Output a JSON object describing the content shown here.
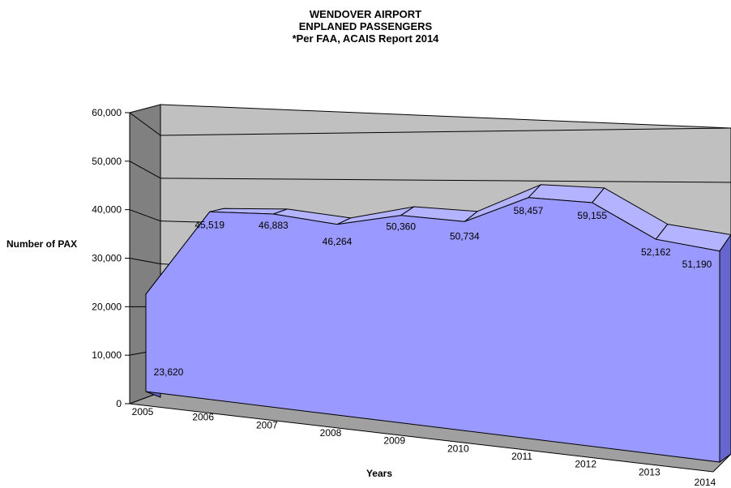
{
  "chart_data": {
    "type": "area",
    "title": [
      "WENDOVER AIRPORT",
      "ENPLANED PASSENGERS",
      "*Per FAA, ACAIS Report 2014"
    ],
    "xlabel": "Years",
    "ylabel": "Number of PAX",
    "ylim": [
      0,
      60000
    ],
    "yticks": [
      "0",
      "10,000",
      "20,000",
      "30,000",
      "40,000",
      "50,000",
      "60,000"
    ],
    "categories": [
      "2005",
      "2006",
      "2007",
      "2008",
      "2009",
      "2010",
      "2011",
      "2012",
      "2013",
      "2014"
    ],
    "values": [
      23620,
      45519,
      46883,
      46264,
      50360,
      50734,
      58457,
      59155,
      52162,
      51190
    ],
    "data_labels": [
      "23,620",
      "45,519",
      "46,883",
      "46,264",
      "50,360",
      "50,734",
      "58,457",
      "59,155",
      "52,162",
      "51,190"
    ],
    "grid": true,
    "style": "3d",
    "colors": {
      "area_front": "#9999ff",
      "area_top": "#b3b3ff",
      "area_side": "#6666cc",
      "wall_back": "#c0c0c0",
      "wall_side": "#808080",
      "floor": "#a0a0a0"
    }
  }
}
